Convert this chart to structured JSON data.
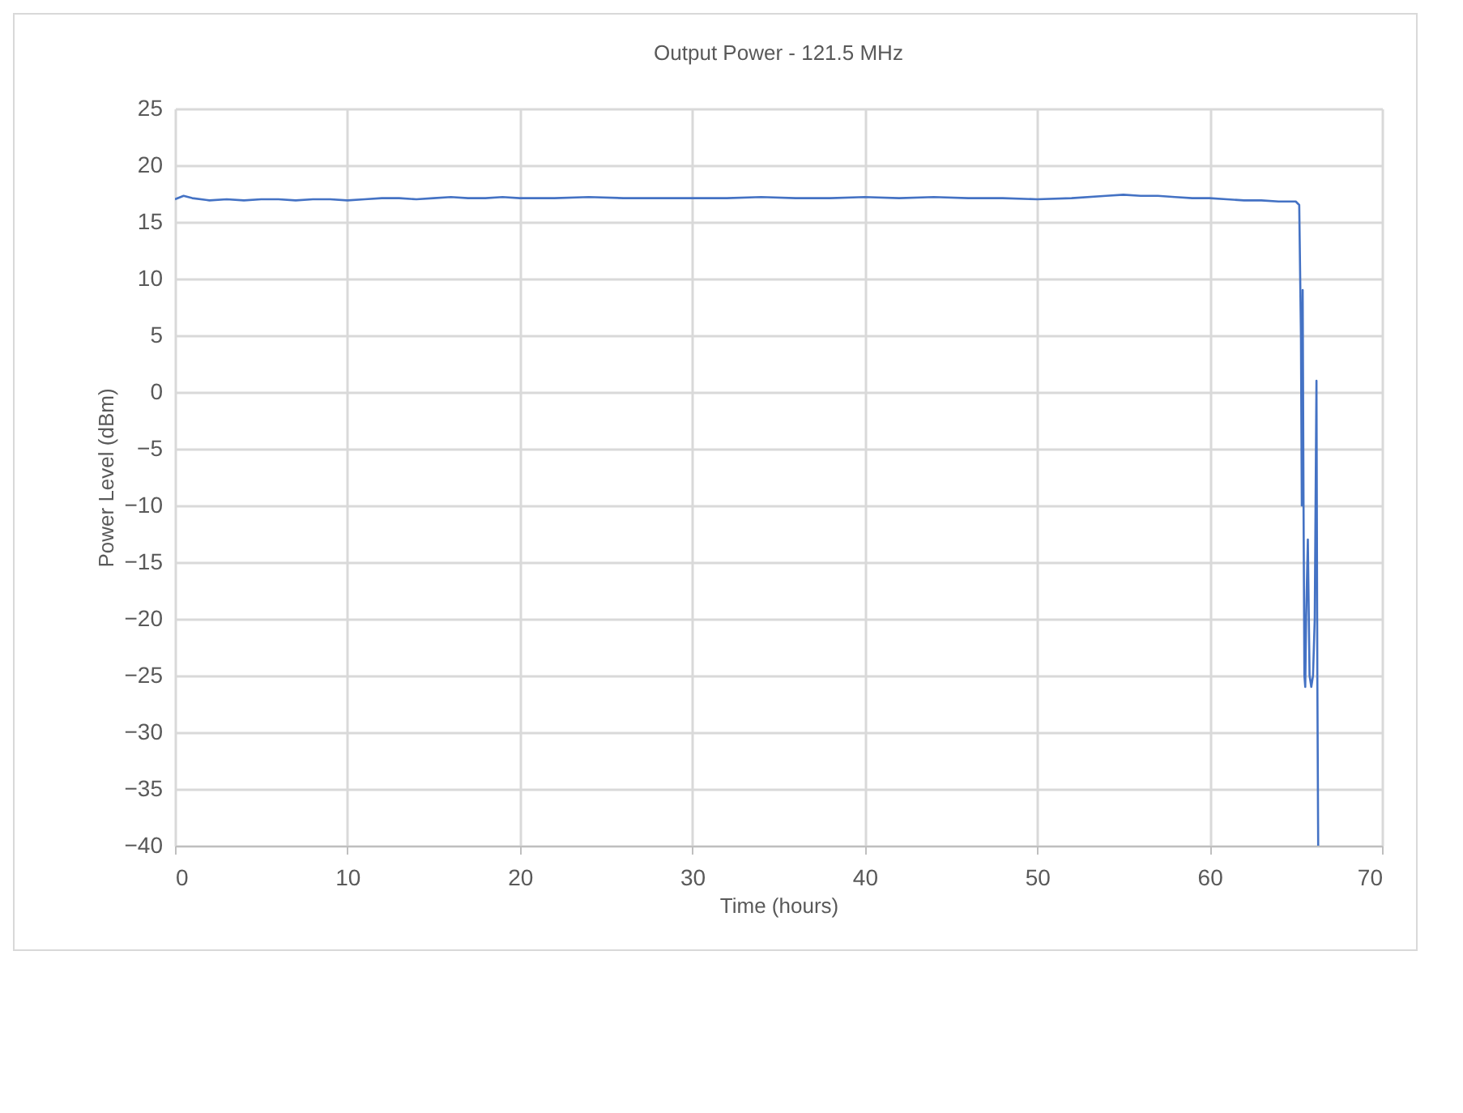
{
  "chart_data": {
    "type": "line",
    "title": "Output Power - 121.5 MHz",
    "xlabel": "Time (hours)",
    "ylabel": "Power Level (dBm)",
    "xlim": [
      0,
      70
    ],
    "xticks": [
      0,
      10,
      20,
      30,
      40,
      50,
      60,
      70
    ],
    "ylim": [
      -40,
      25
    ],
    "yticks": [
      -40,
      -35,
      -30,
      -25,
      -20,
      -15,
      -10,
      -5,
      0,
      5,
      10,
      15,
      20,
      25
    ],
    "grid": true,
    "series": [
      {
        "color": "#4472c4",
        "x": [
          0,
          0.5,
          1,
          2,
          3,
          4,
          5,
          6,
          7,
          8,
          9,
          10,
          11,
          12,
          13,
          14,
          15,
          16,
          17,
          18,
          19,
          20,
          22,
          24,
          26,
          28,
          30,
          32,
          34,
          36,
          38,
          40,
          42,
          44,
          46,
          48,
          50,
          52,
          54,
          55,
          56,
          57,
          58,
          59,
          60,
          61,
          62,
          63,
          64,
          65,
          65.2,
          65.3,
          65.35,
          65.4,
          65.45,
          65.5,
          65.55,
          65.6,
          65.7,
          65.8,
          65.9,
          66.0,
          66.1,
          66.2,
          66.25,
          66.3
        ],
        "values": [
          17.0,
          17.3,
          17.1,
          16.9,
          17.0,
          16.9,
          17.0,
          17.0,
          16.9,
          17.0,
          17.0,
          16.9,
          17.0,
          17.1,
          17.1,
          17.0,
          17.1,
          17.2,
          17.1,
          17.1,
          17.2,
          17.1,
          17.1,
          17.2,
          17.1,
          17.1,
          17.1,
          17.1,
          17.2,
          17.1,
          17.1,
          17.2,
          17.1,
          17.2,
          17.1,
          17.1,
          17.0,
          17.1,
          17.3,
          17.4,
          17.3,
          17.3,
          17.2,
          17.1,
          17.1,
          17.0,
          16.9,
          16.9,
          16.8,
          16.8,
          16.5,
          5,
          -10,
          9,
          -10,
          -25,
          -26,
          -20,
          -13,
          -25,
          -26,
          -25,
          -20,
          1,
          -25,
          -40
        ]
      }
    ]
  }
}
